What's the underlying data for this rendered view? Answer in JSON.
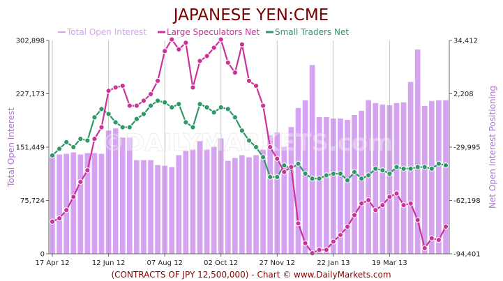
{
  "chart_data": {
    "type": "bar+line",
    "title": "JAPANESE YEN:CME",
    "footer": "(CONTRACTS OF JPY 12,500,000)  - Chart © www.DailyMarkets.com",
    "watermark": "©DAILYMARKETS.com",
    "ylabel_left": "Total Open Interest",
    "ylabel_right": "Net Open Interest Positioning",
    "left_axis": {
      "ylim": [
        0,
        302898
      ],
      "ticks": [
        0,
        75724,
        151449,
        227173,
        302898
      ],
      "tick_labels": [
        "0",
        "75,724",
        "151,449",
        "227,173",
        "302,898"
      ]
    },
    "right_axis": {
      "ylim": [
        -94401,
        34412
      ],
      "ticks": [
        -94401,
        -62198,
        -29995,
        2208,
        34412
      ],
      "tick_labels": [
        "-94,401",
        "-62,198",
        "-29,995",
        "2,208",
        "34,412"
      ]
    },
    "x_tick_labels": [
      {
        "label": "17 Apr 12",
        "index": 0
      },
      {
        "label": "12 Jun 12",
        "index": 8
      },
      {
        "label": "07 Aug 12",
        "index": 16
      },
      {
        "label": "02 Oct 12",
        "index": 24
      },
      {
        "label": "27 Nov 12",
        "index": 32
      },
      {
        "label": "22 Jan 13",
        "index": 40
      },
      {
        "label": "19 Mar 13",
        "index": 48
      }
    ],
    "grid": "vertical lines at labeled ticks",
    "legend": "top",
    "series": [
      {
        "name": "Total Open Interest",
        "kind": "bar",
        "axis": "left",
        "color": "#d6a3f0",
        "values": [
          141000,
          141000,
          142000,
          144000,
          141000,
          143000,
          143000,
          142000,
          175000,
          178000,
          165000,
          165000,
          133000,
          133000,
          133000,
          126000,
          125000,
          123000,
          140000,
          146000,
          148000,
          160000,
          148000,
          152000,
          164000,
          132000,
          136000,
          140000,
          137000,
          140000,
          148000,
          168000,
          172000,
          152000,
          180000,
          207000,
          218000,
          268000,
          194000,
          194000,
          192000,
          192000,
          190000,
          197000,
          203000,
          218000,
          214000,
          212000,
          211000,
          214000,
          215000,
          244000,
          290000,
          210000,
          217000,
          218000,
          218000
        ]
      },
      {
        "name": "Large Speculators Net",
        "kind": "line",
        "axis": "right",
        "color": "#cc3399",
        "values": [
          -75000,
          -73000,
          -68000,
          -60000,
          -51000,
          -44000,
          -25000,
          -18000,
          4000,
          6000,
          7000,
          -5000,
          -5000,
          -2000,
          2000,
          10000,
          28000,
          35000,
          29000,
          33000,
          6000,
          22000,
          25000,
          30000,
          35000,
          21000,
          15000,
          32000,
          10000,
          7000,
          -5000,
          -30000,
          -37000,
          -45000,
          -42000,
          -76000,
          -88000,
          -94000,
          -92000,
          -92000,
          -87000,
          -83000,
          -78000,
          -71000,
          -64000,
          -62000,
          -68000,
          -65000,
          -60000,
          -58000,
          -65000,
          -64000,
          -74000,
          -91000,
          -85000,
          -86000,
          -78000
        ]
      },
      {
        "name": "Small Traders Net",
        "kind": "line",
        "axis": "right",
        "color": "#2e9966",
        "values": [
          -35000,
          -31000,
          -27000,
          -30000,
          -25000,
          -26000,
          -12000,
          -7000,
          -10000,
          -15000,
          -18000,
          -18000,
          -13000,
          -10000,
          -5000,
          -2000,
          -3000,
          -6000,
          -4000,
          -15000,
          -18000,
          -4000,
          -6000,
          -9000,
          -6000,
          -7000,
          -12000,
          -20000,
          -26000,
          -30000,
          -36000,
          -48000,
          -48000,
          -41000,
          -43000,
          -40000,
          -46000,
          -49000,
          -49000,
          -47000,
          -46000,
          -46000,
          -50000,
          -45000,
          -49000,
          -47000,
          -43000,
          -44000,
          -46000,
          -42000,
          -43000,
          -43000,
          -42000,
          -42000,
          -43000,
          -40000,
          -41000
        ]
      }
    ]
  }
}
